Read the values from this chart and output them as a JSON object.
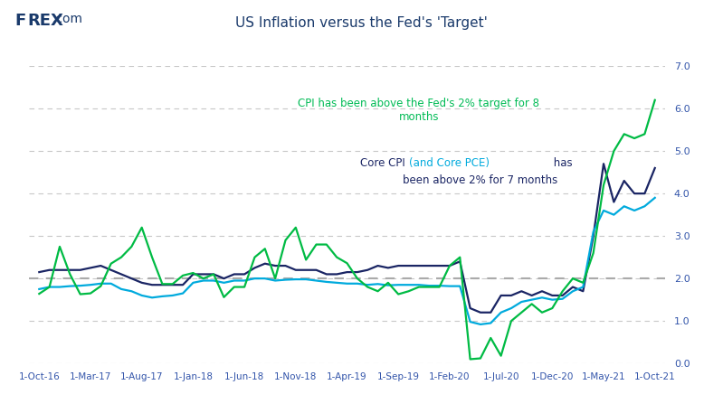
{
  "title": "US Inflation versus the Fed's 'Target'",
  "title_color": "#1a3a6b",
  "background_color": "#ffffff",
  "grid_color": "#c8c8c8",
  "ylim": [
    0.0,
    7.0
  ],
  "yticks": [
    0.0,
    1.0,
    2.0,
    3.0,
    4.0,
    5.0,
    6.0,
    7.0
  ],
  "fed_target": 2.0,
  "annotation_cpi_color": "#00bb55",
  "cpi_color": "#00bb44",
  "core_cpi_color": "#1a2564",
  "core_pce_color": "#00aadd",
  "fed_target_color": "#aaaaaa",
  "line_width": 1.6,
  "xtick_labels": [
    "1-Oct-16",
    "1-Mar-17",
    "1-Aug-17",
    "1-Jan-18",
    "1-Jun-18",
    "1-Nov-18",
    "1-Apr-19",
    "1-Sep-19",
    "1-Feb-20",
    "1-Jul-20",
    "1-Dec-20",
    "1-May-21",
    "1-Oct-21"
  ],
  "tick_positions": [
    0,
    5,
    10,
    15,
    20,
    25,
    30,
    35,
    40,
    45,
    50,
    55,
    60
  ],
  "cpi_data": [
    1.64,
    1.8,
    2.75,
    2.1,
    1.63,
    1.65,
    1.82,
    2.35,
    2.5,
    2.75,
    3.2,
    2.5,
    1.87,
    1.87,
    2.07,
    2.13,
    2.0,
    2.1,
    1.56,
    1.8,
    1.8,
    2.5,
    2.7,
    2.0,
    2.9,
    3.2,
    2.44,
    2.8,
    2.8,
    2.5,
    2.36,
    2.0,
    1.8,
    1.7,
    1.9,
    1.63,
    1.7,
    1.8,
    1.8,
    1.8,
    2.3,
    2.5,
    0.1,
    0.12,
    0.6,
    0.18,
    1.0,
    1.2,
    1.4,
    1.2,
    1.3,
    1.7,
    2.0,
    1.9,
    2.6,
    4.2,
    5.0,
    5.4,
    5.3,
    5.4,
    6.2
  ],
  "core_cpi_data": [
    2.15,
    2.2,
    2.2,
    2.2,
    2.2,
    2.25,
    2.3,
    2.2,
    2.1,
    2.0,
    1.9,
    1.85,
    1.85,
    1.85,
    1.85,
    2.1,
    2.1,
    2.1,
    2.0,
    2.1,
    2.1,
    2.25,
    2.35,
    2.3,
    2.3,
    2.2,
    2.2,
    2.2,
    2.1,
    2.1,
    2.15,
    2.15,
    2.2,
    2.3,
    2.25,
    2.3,
    2.3,
    2.3,
    2.3,
    2.3,
    2.3,
    2.4,
    1.3,
    1.2,
    1.2,
    1.6,
    1.6,
    1.7,
    1.6,
    1.7,
    1.6,
    1.6,
    1.8,
    1.7,
    3.0,
    4.7,
    3.8,
    4.3,
    4.0,
    4.0,
    4.6
  ],
  "core_pce_data": [
    1.75,
    1.8,
    1.8,
    1.82,
    1.83,
    1.85,
    1.88,
    1.88,
    1.75,
    1.7,
    1.6,
    1.55,
    1.58,
    1.6,
    1.65,
    1.9,
    1.95,
    1.95,
    1.9,
    1.95,
    1.95,
    2.0,
    2.0,
    1.95,
    1.97,
    1.98,
    1.98,
    1.95,
    1.92,
    1.9,
    1.88,
    1.88,
    1.85,
    1.87,
    1.84,
    1.85,
    1.85,
    1.85,
    1.83,
    1.83,
    1.82,
    1.82,
    0.98,
    0.92,
    0.95,
    1.2,
    1.3,
    1.45,
    1.5,
    1.55,
    1.5,
    1.52,
    1.7,
    1.8,
    3.1,
    3.6,
    3.5,
    3.7,
    3.6,
    3.7,
    3.9
  ],
  "n_points": 61
}
